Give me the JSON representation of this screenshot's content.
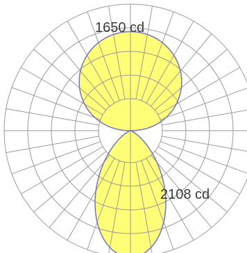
{
  "chart_data": {
    "type": "polar",
    "title": "",
    "grid": true,
    "angular_step_deg": 10,
    "rings": 5,
    "fill_color": "#ffff77",
    "curve_color": "#7a78c8",
    "grid_color": "#9a9a9a",
    "series": [
      {
        "label": "1650 cd",
        "direction": "upward",
        "max_value": 1650,
        "shape": "round-lobe"
      },
      {
        "label": "2108 cd",
        "direction": "downward",
        "max_value": 2108,
        "shape": "narrow-lobe"
      }
    ]
  }
}
